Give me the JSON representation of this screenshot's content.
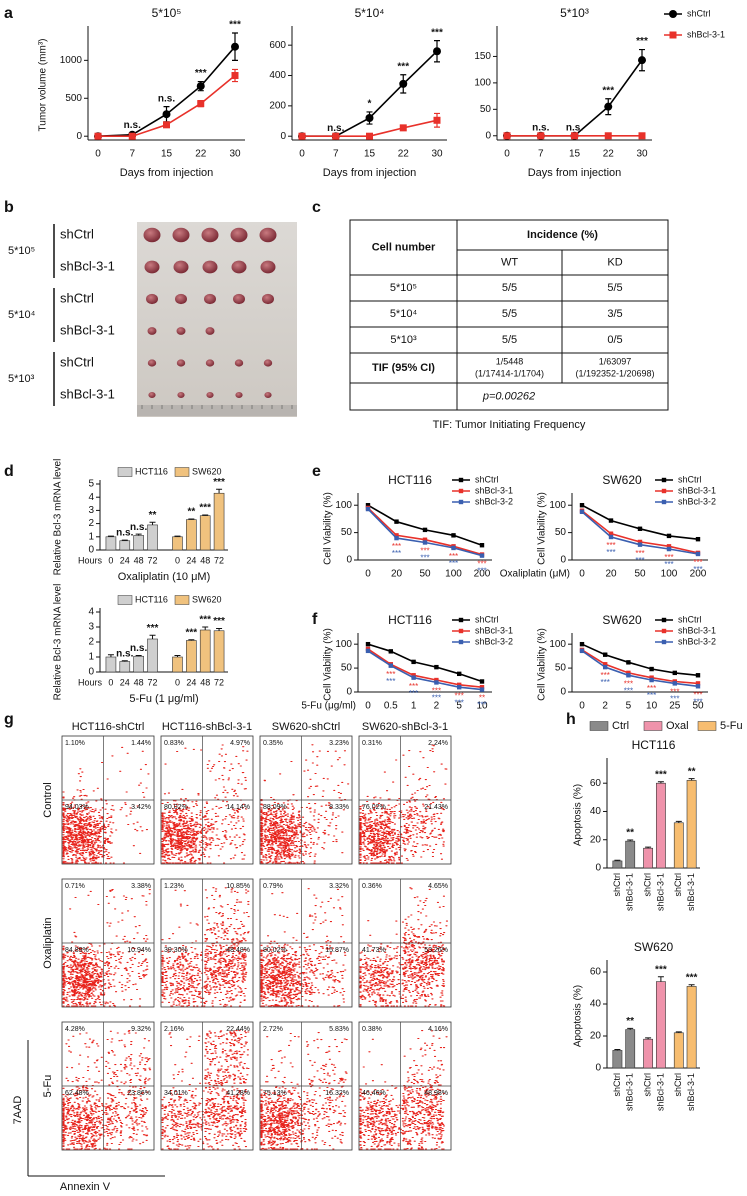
{
  "panels": [
    "a",
    "b",
    "c",
    "d",
    "e",
    "f",
    "g",
    "h"
  ],
  "chart_data": [
    {
      "type": "line",
      "title": "5*10⁵",
      "categories": [
        "0",
        "7",
        "15",
        "22",
        "30"
      ],
      "xlabel": "Days from injection",
      "ylabel": "Tumor volume (mm³)",
      "ylim": [
        -50,
        1400
      ],
      "yticks": [
        0,
        500,
        1000
      ],
      "series": [
        {
          "color": "#000000",
          "marker": "circle",
          "values": [
            0,
            20,
            290,
            660,
            1180
          ],
          "errors": [
            0,
            20,
            100,
            60,
            180
          ],
          "annotations": [
            null,
            "n.s.",
            "n.s.",
            "***",
            "***"
          ]
        },
        {
          "color": "#e8312a",
          "marker": "square",
          "values": [
            0,
            0,
            150,
            430,
            800
          ],
          "errors": [
            0,
            0,
            30,
            40,
            80
          ]
        }
      ]
    },
    {
      "type": "line",
      "title": "5*10⁴",
      "categories": [
        "0",
        "7",
        "15",
        "22",
        "30"
      ],
      "xlabel": "Days from injection",
      "ylim": [
        -25,
        700
      ],
      "yticks": [
        0,
        200,
        400,
        600
      ],
      "series": [
        {
          "color": "#000000",
          "marker": "circle",
          "values": [
            0,
            0,
            120,
            345,
            560
          ],
          "errors": [
            0,
            0,
            40,
            60,
            70
          ],
          "annotations": [
            null,
            "n.s.",
            "*",
            "***",
            "***"
          ]
        },
        {
          "color": "#e8312a",
          "marker": "square",
          "values": [
            0,
            0,
            0,
            55,
            105
          ],
          "errors": [
            0,
            0,
            0,
            10,
            45
          ]
        }
      ]
    },
    {
      "type": "line",
      "title": "5*10³",
      "categories": [
        "0",
        "7",
        "15",
        "22",
        "30"
      ],
      "xlabel": "Days from injection",
      "ylim": [
        -8,
        200
      ],
      "yticks": [
        0,
        50,
        100,
        150
      ],
      "legend": "right",
      "series": [
        {
          "name": "shCtrl",
          "color": "#000000",
          "marker": "circle",
          "values": [
            0,
            0,
            0,
            55,
            143
          ],
          "errors": [
            0,
            0,
            0,
            15,
            20
          ],
          "annotations": [
            null,
            "n.s.",
            "n.s.",
            "***",
            "***"
          ]
        },
        {
          "name": "shBcl-3-1",
          "color": "#e8312a",
          "marker": "square",
          "values": [
            0,
            0,
            0,
            0,
            0
          ],
          "errors": [
            0,
            0,
            0,
            0,
            0
          ]
        }
      ]
    },
    {
      "type": "bar",
      "categories": [
        "0",
        "24",
        "48",
        "72"
      ],
      "x_prefix": "Hours",
      "xlabel": "Oxaliplatin (10 μM)",
      "ylabel": "Relative Bcl-3 mRNA level",
      "ylim": [
        0,
        5
      ],
      "yticks": [
        0,
        1,
        2,
        3,
        4,
        5
      ],
      "legend": "top",
      "series": [
        {
          "name": "HCT116",
          "color": "#cfcfcf",
          "values": [
            1.0,
            0.7,
            1.1,
            1.9
          ],
          "errors": [
            0.05,
            0.05,
            0.1,
            0.2
          ],
          "annotations": [
            null,
            "n.s.",
            "n.s.",
            "**"
          ]
        },
        {
          "name": "SW620",
          "color": "#f0c27e",
          "values": [
            1.0,
            2.3,
            2.6,
            4.3
          ],
          "errors": [
            0.05,
            0.05,
            0.05,
            0.3
          ],
          "annotations": [
            null,
            "**",
            "***",
            "***"
          ]
        }
      ]
    },
    {
      "type": "bar",
      "categories": [
        "0",
        "24",
        "48",
        "72"
      ],
      "x_prefix": "Hours",
      "xlabel": "5-Fu (1 μg/ml)",
      "ylabel": "Relative Bcl-3 mRNA level",
      "ylim": [
        0,
        4
      ],
      "yticks": [
        0,
        1,
        2,
        3,
        4
      ],
      "legend": "top",
      "series": [
        {
          "name": "HCT116",
          "color": "#cfcfcf",
          "values": [
            1.0,
            0.7,
            1.05,
            2.2
          ],
          "errors": [
            0.15,
            0.05,
            0.05,
            0.25
          ],
          "annotations": [
            null,
            "n.s.",
            "n.s.",
            "***"
          ]
        },
        {
          "name": "SW620",
          "color": "#f0c27e",
          "values": [
            1.0,
            2.1,
            2.8,
            2.75
          ],
          "errors": [
            0.1,
            0.05,
            0.2,
            0.15
          ],
          "annotations": [
            null,
            "***",
            "***",
            "***"
          ]
        }
      ]
    },
    {
      "type": "line",
      "title": "HCT116",
      "categories": [
        "0",
        "20",
        "50",
        "100",
        "200"
      ],
      "ylabel": "Cell Viability (%)",
      "ylim": [
        0,
        115
      ],
      "yticks": [
        0,
        50,
        100
      ],
      "legend": "top-right",
      "series": [
        {
          "name": "shCtrl",
          "color": "#000000",
          "values": [
            100,
            70,
            55,
            45,
            27
          ]
        },
        {
          "name": "shBcl-3-1",
          "color": "#e8312a",
          "values": [
            95,
            45,
            37,
            25,
            10
          ],
          "annotations": [
            null,
            "***",
            "***",
            "***",
            "***"
          ]
        },
        {
          "name": "shBcl-3-2",
          "color": "#3a5fb0",
          "values": [
            93,
            40,
            32,
            22,
            8
          ],
          "annotations": [
            null,
            "***",
            "***",
            "***",
            "***"
          ]
        }
      ]
    },
    {
      "type": "line",
      "title": "SW620",
      "categories": [
        "0",
        "20",
        "50",
        "100",
        "200"
      ],
      "xlabel": "Oxaliplatin (μM)",
      "ylabel": "Cell Viability (%)",
      "ylim": [
        0,
        115
      ],
      "yticks": [
        0,
        50,
        100
      ],
      "legend": "top-right",
      "series": [
        {
          "name": "shCtrl",
          "color": "#000000",
          "values": [
            100,
            72,
            57,
            44,
            38
          ]
        },
        {
          "name": "shBcl-3-1",
          "color": "#e8312a",
          "values": [
            90,
            48,
            33,
            25,
            13
          ],
          "annotations": [
            null,
            "***",
            "***",
            "***",
            "***"
          ]
        },
        {
          "name": "shBcl-3-2",
          "color": "#3a5fb0",
          "values": [
            88,
            42,
            28,
            20,
            11
          ],
          "annotations": [
            null,
            "***",
            "***",
            "***",
            "***"
          ]
        }
      ]
    },
    {
      "type": "line",
      "title": "HCT116",
      "categories": [
        "0",
        "0.5",
        "1",
        "2",
        "5",
        "10"
      ],
      "xlabel": "5-Fu (μg/ml)",
      "ylabel": "Cell Viability (%)",
      "ylim": [
        0,
        115
      ],
      "yticks": [
        0,
        50,
        100
      ],
      "legend": "top-right",
      "series": [
        {
          "name": "shCtrl",
          "color": "#000000",
          "values": [
            100,
            85,
            63,
            52,
            38,
            22
          ]
        },
        {
          "name": "shBcl-3-1",
          "color": "#e8312a",
          "values": [
            90,
            58,
            35,
            25,
            15,
            10
          ],
          "annotations": [
            null,
            "***",
            "***",
            "***",
            "***",
            "**"
          ]
        },
        {
          "name": "shBcl-3-2",
          "color": "#3a5fb0",
          "values": [
            86,
            55,
            30,
            20,
            10,
            5
          ],
          "annotations": [
            null,
            "***",
            "***",
            "***",
            "***",
            "***"
          ]
        }
      ]
    },
    {
      "type": "line",
      "title": "SW620",
      "categories": [
        "0",
        "2",
        "5",
        "10",
        "25",
        "50"
      ],
      "ylabel": "Cell Viability (%)",
      "ylim": [
        0,
        115
      ],
      "yticks": [
        0,
        50,
        100
      ],
      "legend": "top-right",
      "series": [
        {
          "name": "shCtrl",
          "color": "#000000",
          "values": [
            100,
            78,
            62,
            48,
            40,
            35
          ]
        },
        {
          "name": "shBcl-3-1",
          "color": "#e8312a",
          "values": [
            88,
            58,
            40,
            30,
            22,
            18
          ],
          "annotations": [
            null,
            "***",
            "***",
            "***",
            "***",
            "***"
          ]
        },
        {
          "name": "shBcl-3-2",
          "color": "#3a5fb0",
          "values": [
            86,
            52,
            35,
            25,
            18,
            12
          ],
          "annotations": [
            null,
            "***",
            "***",
            "***",
            "***",
            "***"
          ]
        }
      ]
    },
    {
      "type": "bar",
      "title": "HCT116",
      "categories": [
        "shCtrl",
        "shBcl-3-1"
      ],
      "ylabel": "Apoptosis (%)",
      "ylim": [
        0,
        75
      ],
      "yticks": [
        0,
        20,
        40,
        60
      ],
      "legend": "top",
      "series": [
        {
          "name": "Ctrl",
          "color": "#8a8a8a",
          "values": [
            5,
            19
          ],
          "errors": [
            0.5,
            0.8
          ],
          "annotations": [
            null,
            "**"
          ]
        },
        {
          "name": "Oxal",
          "color": "#ef93ab",
          "values": [
            14,
            60
          ],
          "errors": [
            0.8,
            1.0
          ],
          "annotations": [
            null,
            "***"
          ]
        },
        {
          "name": "5-Fu",
          "color": "#f7bd70",
          "values": [
            32,
            62
          ],
          "errors": [
            1.0,
            1.2
          ],
          "annotations": [
            null,
            "**"
          ]
        }
      ]
    },
    {
      "type": "bar",
      "title": "SW620",
      "categories": [
        "shCtrl",
        "shBcl-3-1"
      ],
      "ylabel": "Apoptosis (%)",
      "ylim": [
        0,
        65
      ],
      "yticks": [
        0,
        20,
        40,
        60
      ],
      "series": [
        {
          "color": "#8a8a8a",
          "values": [
            11,
            24
          ],
          "errors": [
            0.6,
            0.8
          ],
          "annotations": [
            null,
            "**"
          ]
        },
        {
          "color": "#ef93ab",
          "values": [
            18,
            54
          ],
          "errors": [
            0.8,
            3.0
          ],
          "annotations": [
            null,
            "***"
          ]
        },
        {
          "color": "#f7bd70",
          "values": [
            22,
            51
          ],
          "errors": [
            0.6,
            1.0
          ],
          "annotations": [
            null,
            "***"
          ]
        }
      ]
    }
  ],
  "photo": {
    "groups": [
      {
        "label": "5*10⁵",
        "rows": [
          "shCtrl",
          "shBcl-3-1"
        ]
      },
      {
        "label": "5*10⁴",
        "rows": [
          "shCtrl",
          "shBcl-3-1"
        ]
      },
      {
        "label": "5*10³",
        "rows": [
          "shCtrl",
          "shBcl-3-1"
        ]
      }
    ]
  },
  "table": {
    "header": [
      "Cell number",
      "Incidence (%)"
    ],
    "subheader": [
      "WT",
      "KD"
    ],
    "rows": [
      [
        "5*10⁵",
        "5/5",
        "5/5"
      ],
      [
        "5*10⁴",
        "5/5",
        "3/5"
      ],
      [
        "5*10³",
        "5/5",
        "0/5"
      ],
      [
        "TIF (95% CI)",
        [
          "1/5448",
          "(1/17414-1/1704)"
        ],
        [
          "1/63097",
          "(1/192352-1/20698)"
        ]
      ]
    ],
    "footer": "p=0.00262",
    "caption": "TIF: Tumor Initiating Frequency"
  },
  "flow": {
    "columns": [
      "HCT116-shCtrl",
      "HCT116-shBcl-3-1",
      "SW620-shCtrl",
      "SW620-shBcl-3-1"
    ],
    "rows": [
      {
        "label": "Control",
        "plots": [
          [
            "1.10%",
            "1.44%",
            "94.03%",
            "3.42%"
          ],
          [
            "0.83%",
            "4.97%",
            "80.02%",
            "14.14%"
          ],
          [
            "0.35%",
            "3.23%",
            "88.09%",
            "8.33%"
          ],
          [
            "0.31%",
            "2.24%",
            "76.02%",
            "21.43%"
          ]
        ]
      },
      {
        "label": "Oxaliplatin",
        "plots": [
          [
            "0.71%",
            "3.38%",
            "84.89%",
            "10.94%"
          ],
          [
            "1.23%",
            "10.85%",
            "39.30%",
            "48.48%"
          ],
          [
            "0.79%",
            "3.32%",
            "80.02%",
            "15.87%"
          ],
          [
            "0.36%",
            "4.65%",
            "41.73%",
            "53.26%"
          ]
        ]
      },
      {
        "label": "5-Fu",
        "plots": [
          [
            "4.28%",
            "9.32%",
            "62.48%",
            "23.86%"
          ],
          [
            "2.16%",
            "22.44%",
            "34.01%",
            "41.28%"
          ],
          [
            "2.72%",
            "5.83%",
            "75.13%",
            "16.32%"
          ],
          [
            "0.38%",
            "4.16%",
            "46.46%",
            "48.98%"
          ]
        ]
      }
    ],
    "ylabel": "7AAD",
    "xlabel": "Annexin V"
  }
}
